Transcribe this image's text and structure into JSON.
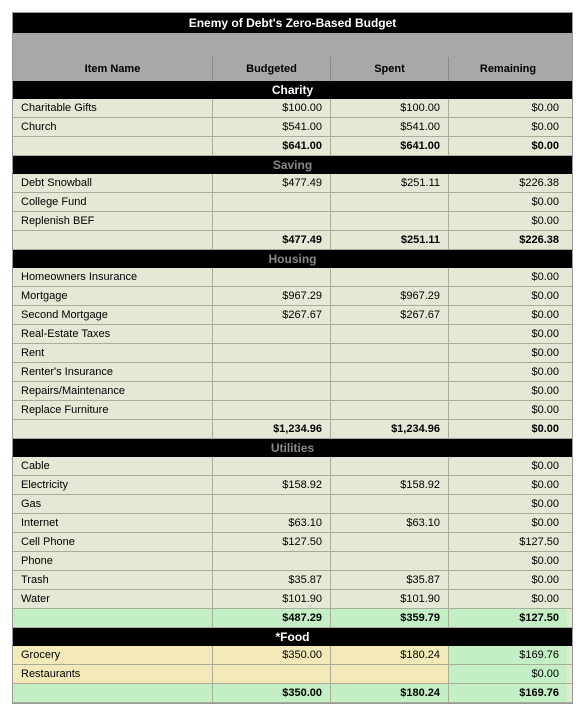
{
  "title": "Enemy of Debt's Zero-Based Budget",
  "headers": {
    "name": "Item Name",
    "budgeted": "Budgeted",
    "spent": "Spent",
    "remaining": "Remaining"
  },
  "colors": {
    "row_bg": "#e4e8d4",
    "header_bg": "#a8a8a8",
    "black": "#000000",
    "white": "#ffffff",
    "border": "#a8ac98",
    "hl_green": "#c4eec4",
    "hl_yellow": "#f4e9b8",
    "faded_text": "#888888"
  },
  "sections": [
    {
      "title": "Charity",
      "faded": false,
      "rows": [
        {
          "name": "Charitable Gifts",
          "b": "$100.00",
          "s": "$100.00",
          "r": "$0.00"
        },
        {
          "name": "Church",
          "b": "$541.00",
          "s": "$541.00",
          "r": "$0.00"
        }
      ],
      "subtotal": {
        "b": "$641.00",
        "s": "$641.00",
        "r": "$0.00"
      }
    },
    {
      "title": "Saving",
      "faded": true,
      "rows": [
        {
          "name": "Debt Snowball",
          "b": "$477.49",
          "s": "$251.11",
          "r": "$226.38"
        },
        {
          "name": "College Fund",
          "b": "",
          "s": "",
          "r": "$0.00"
        },
        {
          "name": "Replenish BEF",
          "b": "",
          "s": "",
          "r": "$0.00"
        }
      ],
      "subtotal": {
        "b": "$477.49",
        "s": "$251.11",
        "r": "$226.38"
      }
    },
    {
      "title": "Housing",
      "faded": true,
      "rows": [
        {
          "name": "Homeowners Insurance",
          "b": "",
          "s": "",
          "r": "$0.00"
        },
        {
          "name": "Mortgage",
          "b": "$967.29",
          "s": "$967.29",
          "r": "$0.00"
        },
        {
          "name": "Second Mortgage",
          "b": "$267.67",
          "s": "$267.67",
          "r": "$0.00"
        },
        {
          "name": "Real-Estate Taxes",
          "b": "",
          "s": "",
          "r": "$0.00"
        },
        {
          "name": "Rent",
          "b": "",
          "s": "",
          "r": "$0.00"
        },
        {
          "name": "Renter's Insurance",
          "b": "",
          "s": "",
          "r": "$0.00"
        },
        {
          "name": "Repairs/Maintenance",
          "b": "",
          "s": "",
          "r": "$0.00"
        },
        {
          "name": "Replace Furniture",
          "b": "",
          "s": "",
          "r": "$0.00"
        }
      ],
      "subtotal": {
        "b": "$1,234.96",
        "s": "$1,234.96",
        "r": "$0.00"
      }
    },
    {
      "title": "Utilities",
      "faded": true,
      "rows": [
        {
          "name": "Cable",
          "b": "",
          "s": "",
          "r": "$0.00"
        },
        {
          "name": "Electricity",
          "b": "$158.92",
          "s": "$158.92",
          "r": "$0.00"
        },
        {
          "name": "Gas",
          "b": "",
          "s": "",
          "r": "$0.00"
        },
        {
          "name": "Internet",
          "b": "$63.10",
          "s": "$63.10",
          "r": "$0.00"
        },
        {
          "name": "Cell Phone",
          "b": "$127.50",
          "s": "",
          "r": "$127.50"
        },
        {
          "name": "Phone",
          "b": "",
          "s": "",
          "r": "$0.00"
        },
        {
          "name": "Trash",
          "b": "$35.87",
          "s": "$35.87",
          "r": "$0.00"
        },
        {
          "name": "Water",
          "b": "$101.90",
          "s": "$101.90",
          "r": "$0.00"
        }
      ],
      "subtotal": {
        "b": "$487.29",
        "s": "$359.79",
        "r": "$127.50",
        "highlight": "green"
      }
    },
    {
      "title": "*Food",
      "faded": false,
      "rows": [
        {
          "name": "Grocery",
          "b": "$350.00",
          "s": "$180.24",
          "r": "$169.76",
          "name_hl": "yellow",
          "b_hl": "yellow",
          "s_hl": "yellow",
          "r_hl": "green"
        },
        {
          "name": "Restaurants",
          "b": "",
          "s": "",
          "r": "$0.00",
          "name_hl": "yellow",
          "b_hl": "yellow",
          "s_hl": "yellow",
          "r_hl": "green"
        }
      ],
      "subtotal": {
        "b": "$350.00",
        "s": "$180.24",
        "r": "$169.76",
        "highlight": "green"
      }
    }
  ]
}
